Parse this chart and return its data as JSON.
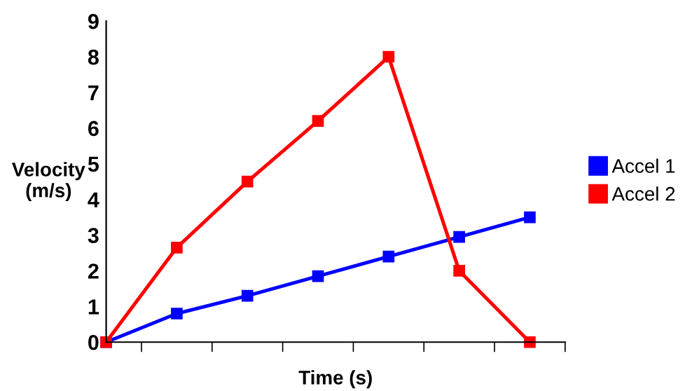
{
  "chart_data": {
    "type": "line",
    "xlabel": "Time (s)",
    "ylabel": "Velocity\n(m/s)",
    "categories": [
      null,
      null,
      null,
      null,
      null,
      null,
      null
    ],
    "series": [
      {
        "name": "Accel 1",
        "color": "#0000ff",
        "values": [
          0,
          0.8,
          1.3,
          1.85,
          2.4,
          2.95,
          3.5
        ]
      },
      {
        "name": "Accel 2",
        "color": "#ff0000",
        "values": [
          0,
          2.65,
          4.5,
          6.2,
          8.0,
          2.0,
          0
        ]
      }
    ],
    "ylim": [
      0,
      9
    ],
    "yticks": [
      0,
      1,
      2,
      3,
      4,
      5,
      6,
      7,
      8,
      9
    ],
    "marker": "square",
    "line_style": "solid",
    "grid": false,
    "legend": "right"
  }
}
